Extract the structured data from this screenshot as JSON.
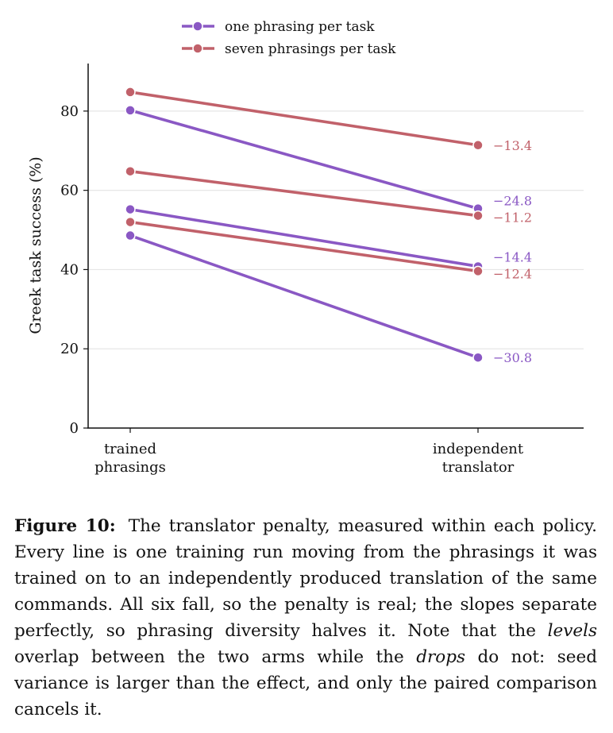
{
  "chart_data": {
    "type": "line",
    "ylabel": "Greek task success (%)",
    "xlabel": "",
    "ylim": [
      0,
      92
    ],
    "yticks": [
      0,
      20,
      40,
      60,
      80
    ],
    "categories": [
      "trained\nphrasings",
      "independent\ntranslator"
    ],
    "grid": "horizontal",
    "legend_position": "top-center",
    "legend": [
      {
        "label": "one phrasing per task",
        "color": "#8a58c4"
      },
      {
        "label": "seven phrasings per task",
        "color": "#c1616a"
      }
    ],
    "runs": [
      {
        "group": "one phrasing per task",
        "values": [
          80.2,
          55.4
        ],
        "drop_label": "−24.8"
      },
      {
        "group": "one phrasing per task",
        "values": [
          55.2,
          40.8
        ],
        "drop_label": "−14.4"
      },
      {
        "group": "one phrasing per task",
        "values": [
          48.6,
          17.8
        ],
        "drop_label": "−30.8"
      },
      {
        "group": "seven phrasings per task",
        "values": [
          84.8,
          71.4
        ],
        "drop_label": "−13.4"
      },
      {
        "group": "seven phrasings per task",
        "values": [
          64.8,
          53.6
        ],
        "drop_label": "−11.2"
      },
      {
        "group": "seven phrasings per task",
        "values": [
          52.0,
          39.6
        ],
        "drop_label": "−12.4"
      }
    ]
  },
  "caption": {
    "label": "Figure 10:",
    "part1": "The translator penalty, measured within each policy. Every line is one training run moving from the phrasings it was trained on to an independently produced translation of the same commands. All six fall, so the penalty is real; the slopes separate perfectly, so phrasing diversity halves it. Note that the ",
    "em1": "levels",
    "part2": " overlap between the two arms while the ",
    "em2": "drops",
    "part3": " do not: seed variance is larger than the effect, and only the paired comparison cancels it."
  }
}
